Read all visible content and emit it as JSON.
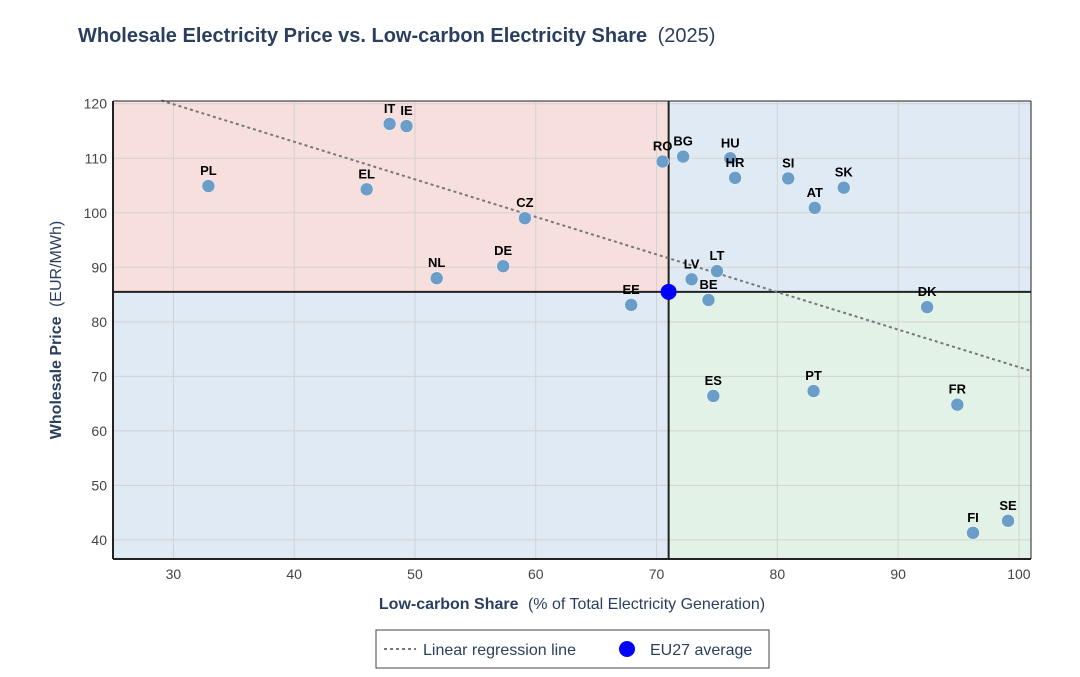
{
  "chart_data": {
    "type": "scatter",
    "title": "Wholesale Electricity Price vs. Low-carbon Electricity Share",
    "title_suffix": "(2025)",
    "xlabel": "Low-carbon Share",
    "xlabel_suffix": "(% of Total Electricity Generation)",
    "ylabel": "Wholesale Price",
    "ylabel_suffix": "(EUR/MWh)",
    "xlim": [
      25,
      101
    ],
    "ylim": [
      36.5,
      120.5
    ],
    "x_ticks": [
      30,
      40,
      50,
      60,
      70,
      80,
      90,
      100
    ],
    "y_ticks": [
      40,
      50,
      60,
      70,
      80,
      90,
      100,
      110,
      120
    ],
    "grid": true,
    "legend_position": "bottom-center",
    "point_color": "#6a9ec9",
    "points": [
      {
        "label": "IT",
        "x": 47.9,
        "y": 116.3
      },
      {
        "label": "IE",
        "x": 49.3,
        "y": 115.9
      },
      {
        "label": "PL",
        "x": 32.9,
        "y": 104.9
      },
      {
        "label": "EL",
        "x": 46.0,
        "y": 104.3
      },
      {
        "label": "CZ",
        "x": 59.1,
        "y": 99.0
      },
      {
        "label": "NL",
        "x": 51.8,
        "y": 88.0
      },
      {
        "label": "DE",
        "x": 57.3,
        "y": 90.2
      },
      {
        "label": "RO",
        "x": 70.5,
        "y": 109.4
      },
      {
        "label": "BG",
        "x": 72.2,
        "y": 110.3
      },
      {
        "label": "HU",
        "x": 76.1,
        "y": 110.0
      },
      {
        "label": "HR",
        "x": 76.5,
        "y": 106.4
      },
      {
        "label": "SI",
        "x": 80.9,
        "y": 106.3
      },
      {
        "label": "SK",
        "x": 85.5,
        "y": 104.6
      },
      {
        "label": "AT",
        "x": 83.1,
        "y": 100.9
      },
      {
        "label": "LV",
        "x": 72.9,
        "y": 87.8
      },
      {
        "label": "LT",
        "x": 75.0,
        "y": 89.3
      },
      {
        "label": "EE",
        "x": 67.9,
        "y": 83.1
      },
      {
        "label": "BE",
        "x": 74.3,
        "y": 84.0
      },
      {
        "label": "DK",
        "x": 92.4,
        "y": 82.7
      },
      {
        "label": "ES",
        "x": 74.7,
        "y": 66.4
      },
      {
        "label": "PT",
        "x": 83.0,
        "y": 67.3
      },
      {
        "label": "FR",
        "x": 94.9,
        "y": 64.8
      },
      {
        "label": "FI",
        "x": 96.2,
        "y": 41.3
      },
      {
        "label": "SE",
        "x": 99.1,
        "y": 43.5
      }
    ],
    "eu27_average": {
      "name": "EU27 average",
      "x": 71.0,
      "y": 85.5,
      "color": "#0000ff"
    },
    "regression": {
      "name": "Linear regression line",
      "x": [
        29,
        101
      ],
      "y": [
        120.6,
        71.0
      ]
    },
    "quadrant_colors": {
      "top_left": "#f7dfdd",
      "top_right": "#dfeaf5",
      "bottom_left": "#dfeaf5",
      "bottom_right": "#e3f2e6"
    }
  },
  "legend": {
    "regression_label": "Linear regression line",
    "eu_label": "EU27 average"
  }
}
